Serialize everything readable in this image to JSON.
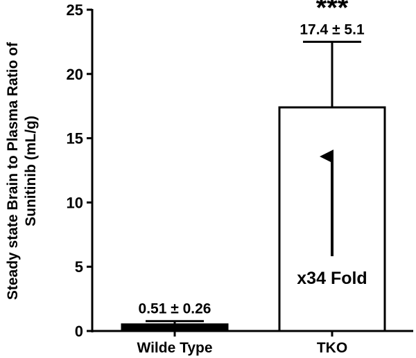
{
  "chart_data": {
    "type": "bar",
    "title": "",
    "xlabel": "",
    "ylabel_lines": [
      "Steady state Brain to Plasma Ratio of",
      "Sunitinib (mL/g)"
    ],
    "ylim": [
      0,
      25
    ],
    "yticks": [
      "0",
      "5",
      "10",
      "15",
      "20",
      "25"
    ],
    "categories": [
      "Wilde Type",
      "TKO"
    ],
    "values": [
      0.51,
      17.4
    ],
    "errors": [
      0.26,
      5.1
    ],
    "bar_fills": [
      "#000000",
      "#ffffff"
    ],
    "value_labels": [
      "0.51 ± 0.26",
      "17.4 ± 5.1"
    ],
    "significance": "***",
    "annotation": "x34 Fold",
    "grid": false,
    "legend": "none"
  }
}
